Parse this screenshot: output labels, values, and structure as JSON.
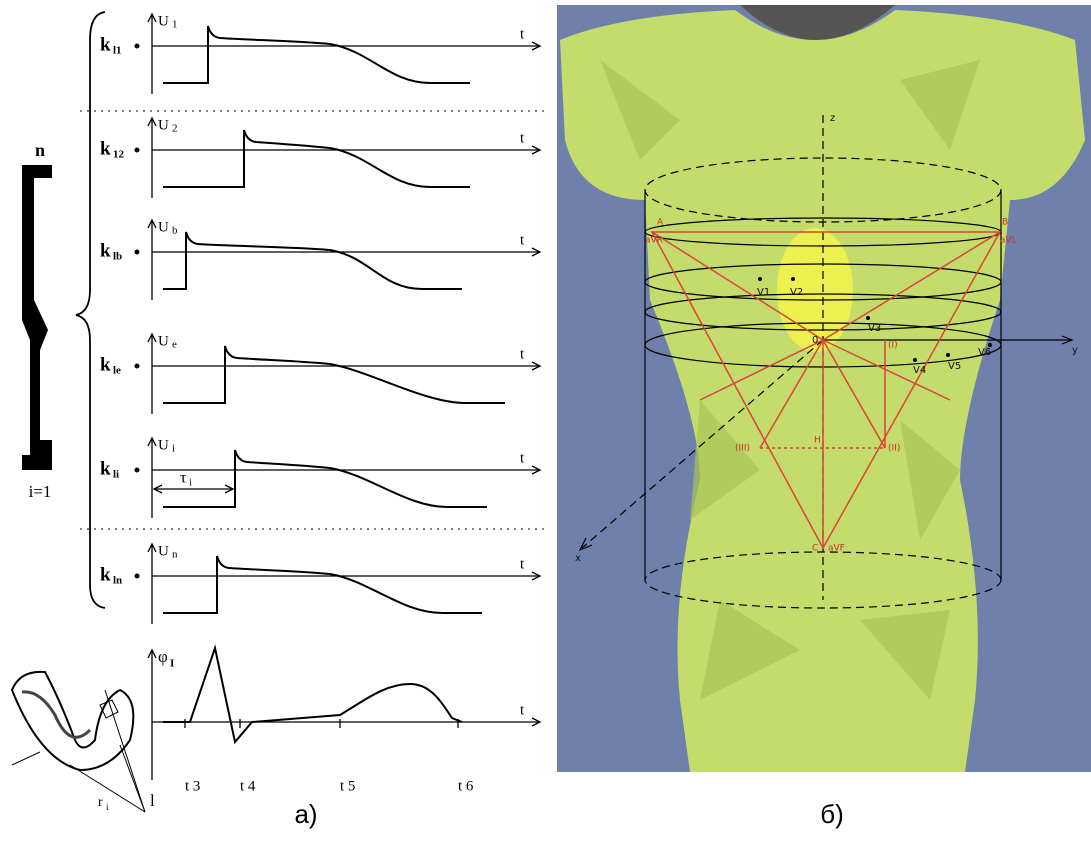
{
  "panel_a": {
    "k": "k",
    "U": "U",
    "t": "t",
    "rows": [
      {
        "k_sub": "l1",
        "u_sub": "1"
      },
      {
        "k_sub": "12",
        "u_sub": "2"
      },
      {
        "k_sub": "lb",
        "u_sub": "b"
      },
      {
        "k_sub": "le",
        "u_sub": "e"
      },
      {
        "k_sub": "li",
        "u_sub": "i"
      },
      {
        "k_sub": "ln",
        "u_sub": "n"
      }
    ],
    "tau": "τ",
    "tau_sub": "i",
    "phi": "φ",
    "phi_sub": "I",
    "times": [
      "t 3",
      "t 4",
      "t 5",
      "t 6"
    ],
    "fiber_top": "n",
    "fiber_bottom": "i=1",
    "heart_l": "l",
    "heart_r": "r",
    "heart_r_sub": "i",
    "caption": "а)"
  },
  "panel_b": {
    "axes": {
      "z": "z",
      "y": "y",
      "x": "x",
      "origin": "0"
    },
    "leads": [
      "V1",
      "V2",
      "V3",
      "V4",
      "V5",
      "V6"
    ],
    "points": {
      "A": "A",
      "B": "B",
      "C": "C",
      "avr": "aVR",
      "avl": "aVL",
      "avf": "aVF",
      "I": "(I)",
      "III": "(III)",
      "II": "(II)",
      "H": "H"
    },
    "caption": "б)"
  }
}
